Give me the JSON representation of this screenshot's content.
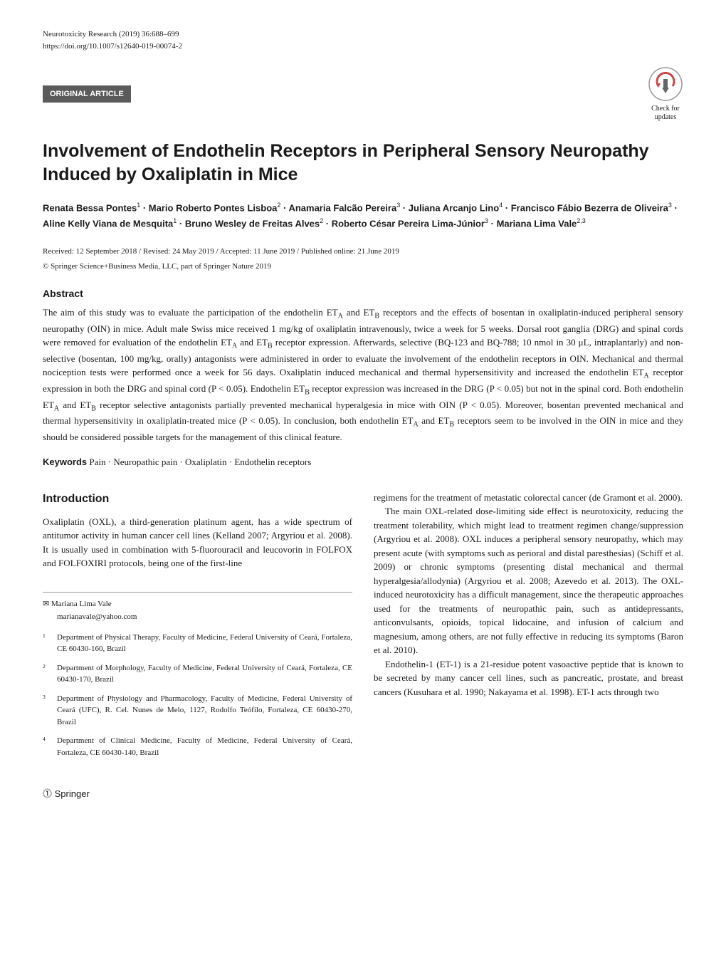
{
  "header": {
    "journal_ref": "Neurotoxicity Research (2019) 36:688–699",
    "doi": "https://doi.org/10.1007/s12640-019-00074-2"
  },
  "article_type": "ORIGINAL ARTICLE",
  "check_updates": {
    "line1": "Check for",
    "line2": "updates",
    "icon_bg_color": "#ffffff",
    "icon_border_color": "#999999",
    "icon_arrow_color": "#c94848"
  },
  "title": "Involvement of Endothelin Receptors in Peripheral Sensory Neuropathy Induced by Oxaliplatin in Mice",
  "authors_html": "Renata Bessa Pontes<sup>1</sup> · Mario Roberto Pontes Lisboa<sup>2</sup> · Anamaria Falcão Pereira<sup>3</sup> · Juliana Arcanjo Lino<sup>4</sup> · Francisco Fábio Bezerra de Oliveira<sup>3</sup> · Aline Kelly Viana de Mesquita<sup>1</sup> · Bruno Wesley de Freitas Alves<sup>2</sup> · Roberto César Pereira Lima-Júnior<sup>3</sup> · Mariana Lima Vale<sup>2,3</sup>",
  "dates": "Received: 12 September 2018 / Revised: 24 May 2019 / Accepted: 11 June 2019 / Published online: 21 June 2019",
  "copyright": "© Springer Science+Business Media, LLC, part of Springer Nature 2019",
  "abstract_heading": "Abstract",
  "abstract": "The aim of this study was to evaluate the participation of the endothelin ET_A and ET_B receptors and the effects of bosentan in oxaliplatin-induced peripheral sensory neuropathy (OIN) in mice. Adult male Swiss mice received 1 mg/kg of oxaliplatin intravenously, twice a week for 5 weeks. Dorsal root ganglia (DRG) and spinal cords were removed for evaluation of the endothelin ET_A and ET_B receptor expression. Afterwards, selective (BQ-123 and BQ-788; 10 nmol in 30 μL, intraplantarly) and non-selective (bosentan, 100 mg/kg, orally) antagonists were administered in order to evaluate the involvement of the endothelin receptors in OIN. Mechanical and thermal nociception tests were performed once a week for 56 days. Oxaliplatin induced mechanical and thermal hypersensitivity and increased the endothelin ET_A receptor expression in both the DRG and spinal cord (P < 0.05). Endothelin ET_B receptor expression was increased in the DRG (P < 0.05) but not in the spinal cord. Both endothelin ET_A and ET_B receptor selective antagonists partially prevented mechanical hyperalgesia in mice with OIN (P < 0.05). Moreover, bosentan prevented mechanical and thermal hypersensitivity in oxaliplatin-treated mice (P < 0.05). In conclusion, both endothelin ET_A and ET_B receptors seem to be involved in the OIN in mice and they should be considered possible targets for the management of this clinical feature.",
  "keywords_label": "Keywords",
  "keywords": "Pain · Neuropathic pain · Oxaliplatin · Endothelin receptors",
  "introduction_heading": "Introduction",
  "body": {
    "left_p1": "Oxaliplatin (OXL), a third-generation platinum agent, has a wide spectrum of antitumor activity in human cancer cell lines (Kelland 2007; Argyriou et al. 2008). It is usually used in combination with 5-fluorouracil and leucovorin in FOLFOX and FOLFOXIRI protocols, being one of the first-line",
    "right_p1": "regimens for the treatment of metastatic colorectal cancer (de Gramont et al. 2000).",
    "right_p2": "The main OXL-related dose-limiting side effect is neurotoxicity, reducing the treatment tolerability, which might lead to treatment regimen change/suppression (Argyriou et al. 2008). OXL induces a peripheral sensory neuropathy, which may present acute (with symptoms such as perioral and distal paresthesias) (Schiff et al. 2009) or chronic symptoms (presenting distal mechanical and thermal hyperalgesia/allodynia) (Argyriou et al. 2008; Azevedo et al. 2013). The OXL-induced neurotoxicity has a difficult management, since the therapeutic approaches used for the treatments of neuropathic pain, such as antidepressants, anticonvulsants, opioids, topical lidocaine, and infusion of calcium and magnesium, among others, are not fully effective in reducing its symptoms (Baron et al. 2010).",
    "right_p3": "Endothelin-1 (ET-1) is a 21-residue potent vasoactive peptide that is known to be secreted by many cancer cell lines, such as pancreatic, prostate, and breast cancers (Kusuhara et al. 1990; Nakayama et al. 1998). ET-1 acts through two"
  },
  "corresponding": {
    "symbol": "✉",
    "name": "Mariana Lima Vale",
    "email": "marianavale@yahoo.com"
  },
  "affiliations": [
    {
      "num": "1",
      "text": "Department of Physical Therapy, Faculty of Medicine, Federal University of Ceará, Fortaleza, CE 60430-160, Brazil"
    },
    {
      "num": "2",
      "text": "Department of Morphology, Faculty of Medicine, Federal University of Ceará, Fortaleza, CE 60430-170, Brazil"
    },
    {
      "num": "3",
      "text": "Department of Physiology and Pharmacology, Faculty of Medicine, Federal University of Ceará (UFC), R. Cel. Nunes de Melo, 1127, Rodolfo Teófilo, Fortaleza, CE 60430-270, Brazil"
    },
    {
      "num": "4",
      "text": "Department of Clinical Medicine, Faculty of Medicine, Federal University of Ceará, Fortaleza, CE 60430-140, Brazil"
    }
  ],
  "footer": {
    "publisher": "Springer"
  }
}
